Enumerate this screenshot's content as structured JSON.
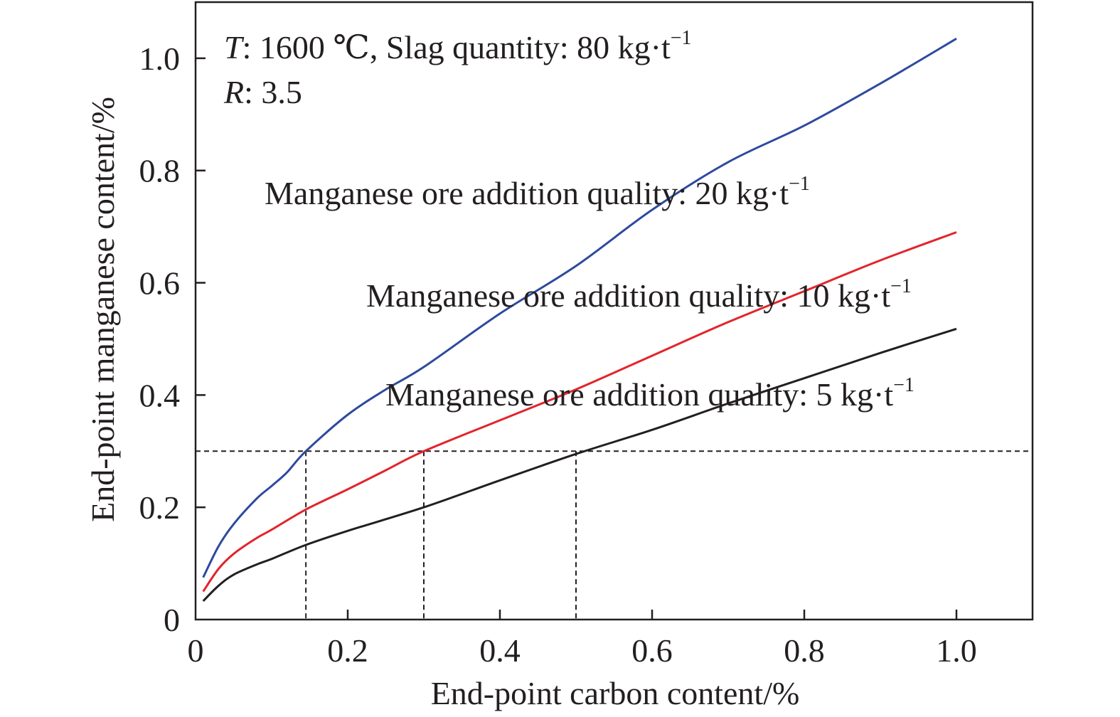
{
  "chart_data": {
    "type": "line",
    "xlabel": "End-point carbon content/%",
    "ylabel": "End-point manganese content/%",
    "xlim": [
      0,
      1.1
    ],
    "ylim": [
      0,
      1.1
    ],
    "x_ticks": [
      0,
      0.2,
      0.4,
      0.6,
      0.8,
      1.0
    ],
    "x_tick_labels": [
      "0",
      "0.2",
      "0.4",
      "0.6",
      "0.8",
      "1.0"
    ],
    "y_ticks": [
      0,
      0.2,
      0.4,
      0.6,
      0.8,
      1.0
    ],
    "y_tick_labels": [
      "0",
      "0.2",
      "0.4",
      "0.6",
      "0.8",
      "1.0"
    ],
    "grid": false,
    "legend": "none",
    "conditions": {
      "line1": {
        "var": "T",
        "text": ": 1600 ℃, Slag quantity: 80 kg·t",
        "sup": "−1"
      },
      "line2": {
        "var": "R",
        "text": ": 3.5"
      }
    },
    "series": [
      {
        "label": "Manganese ore addition quality: 20 kg·t",
        "label_sup": "−1",
        "color": "#2e4a9e",
        "x": [
          0.01,
          0.03,
          0.05,
          0.08,
          0.1,
          0.12,
          0.145,
          0.2,
          0.25,
          0.3,
          0.4,
          0.5,
          0.6,
          0.7,
          0.8,
          0.9,
          1.0
        ],
        "y": [
          0.075,
          0.13,
          0.17,
          0.215,
          0.238,
          0.262,
          0.3,
          0.365,
          0.41,
          0.45,
          0.545,
          0.63,
          0.73,
          0.815,
          0.88,
          0.955,
          1.035
        ]
      },
      {
        "label": "Manganese ore addition quality: 10 kg·t",
        "label_sup": "−1",
        "color": "#e3242b",
        "x": [
          0.01,
          0.03,
          0.05,
          0.08,
          0.1,
          0.145,
          0.2,
          0.25,
          0.3,
          0.4,
          0.5,
          0.6,
          0.7,
          0.8,
          0.9,
          1.0
        ],
        "y": [
          0.05,
          0.09,
          0.117,
          0.145,
          0.16,
          0.196,
          0.232,
          0.266,
          0.3,
          0.355,
          0.41,
          0.47,
          0.53,
          0.585,
          0.64,
          0.69
        ]
      },
      {
        "label": "Manganese ore addition quality: 5 kg·t",
        "label_sup": "−1",
        "color": "#231f20",
        "x": [
          0.01,
          0.03,
          0.05,
          0.08,
          0.1,
          0.145,
          0.2,
          0.3,
          0.4,
          0.5,
          0.6,
          0.7,
          0.8,
          0.9,
          1.0
        ],
        "y": [
          0.033,
          0.06,
          0.08,
          0.098,
          0.108,
          0.133,
          0.158,
          0.2,
          0.248,
          0.295,
          0.338,
          0.385,
          0.43,
          0.475,
          0.518
        ]
      }
    ],
    "reference_lines": {
      "horizontal_y": 0.3,
      "vertical_x": [
        0.145,
        0.3,
        0.5
      ]
    }
  }
}
